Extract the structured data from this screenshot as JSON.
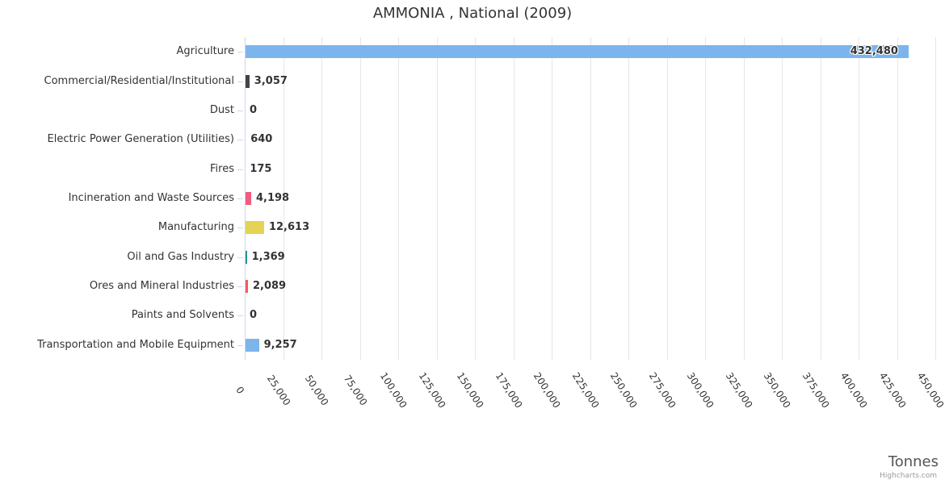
{
  "title": "AMMONIA , National (2009)",
  "axis": {
    "unit_label": "Tonnes",
    "tick_labels": [
      "0",
      "25,000",
      "50,000",
      "75,000",
      "100,000",
      "125,000",
      "150,000",
      "175,000",
      "200,000",
      "225,000",
      "250,000",
      "275,000",
      "300,000",
      "325,000",
      "350,000",
      "375,000",
      "400,000",
      "425,000",
      "450,000"
    ],
    "max": 450000,
    "tick_interval": 25000
  },
  "credits": "Highcharts.com",
  "chart_data": {
    "type": "bar",
    "orientation": "horizontal",
    "title": "AMMONIA , National (2009)",
    "xlabel": "Tonnes",
    "xlim": [
      0,
      450000
    ],
    "grid": true,
    "legend": false,
    "categories": [
      "Agriculture",
      "Commercial/Residential/Institutional",
      "Dust",
      "Electric Power Generation (Utilities)",
      "Fires",
      "Incineration and Waste Sources",
      "Manufacturing",
      "Oil and Gas Industry",
      "Ores and Mineral Industries",
      "Paints and Solvents",
      "Transportation and Mobile Equipment"
    ],
    "values": [
      432480,
      3057,
      0,
      640,
      175,
      4198,
      12613,
      1369,
      2089,
      0,
      9257
    ],
    "value_labels": [
      "432,480",
      "3,057",
      "0",
      "640",
      "175",
      "4,198",
      "12,613",
      "1,369",
      "2,089",
      "0",
      "9,257"
    ],
    "colors": [
      "#7cb5ec",
      "#434348",
      "#90ed7d",
      "#f7a35c",
      "#8085e9",
      "#f15c80",
      "#e4d354",
      "#2b908f",
      "#f45b5b",
      "#91e8e1",
      "#7cb5ec"
    ]
  }
}
